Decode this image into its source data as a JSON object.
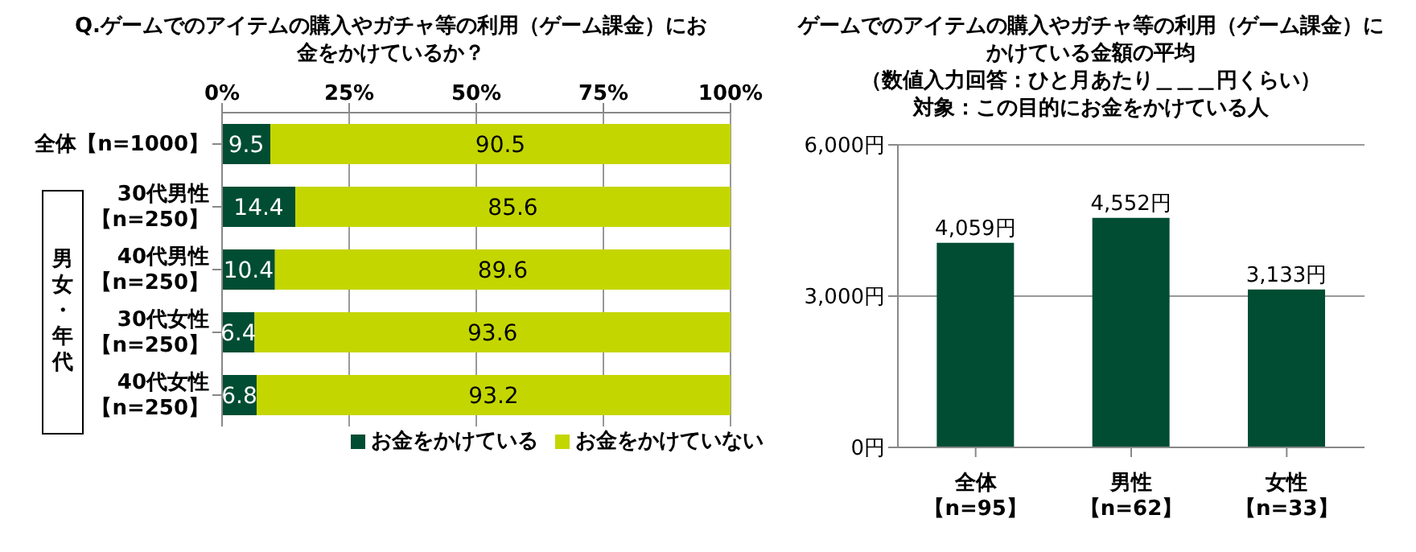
{
  "chart_data": [
    {
      "type": "bar",
      "orientation": "horizontal",
      "stacked": true,
      "title": "Q.ゲームでのアイテムの購入やガチャ等の利用（ゲーム課金）にお金をかけているか？",
      "categories": [
        "全体【n=1000】",
        "30代男性【n=250】",
        "40代男性【n=250】",
        "30代女性【n=250】",
        "40代女性【n=250】"
      ],
      "series": [
        {
          "name": "お金をかけている",
          "color": "#004d33",
          "values": [
            9.5,
            14.4,
            10.4,
            6.4,
            6.8
          ]
        },
        {
          "name": "お金をかけていない",
          "color": "#c4d600",
          "values": [
            90.5,
            85.6,
            89.6,
            93.6,
            93.2
          ]
        }
      ],
      "xlim": [
        0,
        100
      ],
      "xticks": [
        {
          "value": 0,
          "label": "0%"
        },
        {
          "value": 25,
          "label": "25%"
        },
        {
          "value": 50,
          "label": "50%"
        },
        {
          "value": 75,
          "label": "75%"
        },
        {
          "value": 100,
          "label": "100%"
        }
      ],
      "grid": "x",
      "data_labels": true,
      "legend": "bottom",
      "annotations": [
        "男女・年代"
      ]
    },
    {
      "type": "bar",
      "title": "ゲームでのアイテムの購入やガチャ等の利用（ゲーム課金）にかけている金額の平均",
      "subtitle": "（数値入力回答：ひと月あたり＿＿＿円くらい）対象：この目的にお金をかけている人",
      "categories": [
        "全体【n=95】",
        "男性【n=62】",
        "女性【n=33】"
      ],
      "values": [
        4059,
        4552,
        3133
      ],
      "color": "#004d33",
      "value_labels": [
        "4,059円",
        "4,552円",
        "3,133円"
      ],
      "ylim": [
        0,
        6000
      ],
      "yticks": [
        {
          "value": 0,
          "label": "0円"
        },
        {
          "value": 3000,
          "label": "3,000円"
        },
        {
          "value": 6000,
          "label": "6,000円"
        }
      ],
      "grid": "y"
    }
  ]
}
